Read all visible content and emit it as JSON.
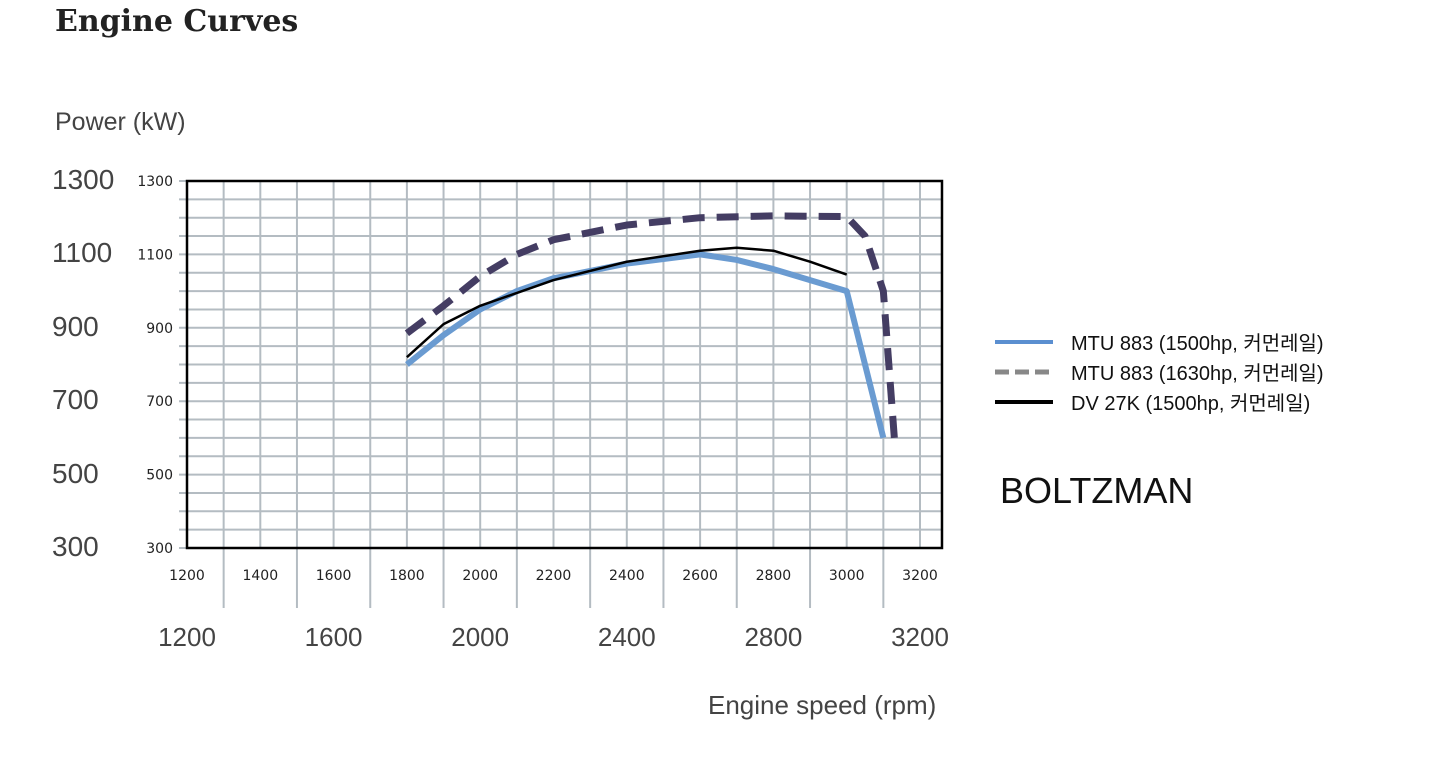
{
  "title": "Engine Curves",
  "brand": "BOLTZMAN",
  "big_y_ticks": [
    "1300",
    "1100",
    "900",
    "700",
    "500",
    "300"
  ],
  "big_x_ticks": [
    "1200",
    "1600",
    "2000",
    "2400",
    "2800",
    "3200"
  ],
  "chart_data": {
    "type": "line",
    "title": "Engine Curves",
    "xlabel": "Engine speed (rpm)",
    "ylabel": "Power (kW)",
    "xlim": [
      1200,
      3260
    ],
    "ylim": [
      300,
      1300
    ],
    "xticks": [
      1200,
      1400,
      1600,
      1800,
      2000,
      2200,
      2400,
      2600,
      2800,
      3000,
      3200
    ],
    "yticks": [
      300,
      500,
      700,
      900,
      1100,
      1300
    ],
    "grid": true,
    "legend_position": "right",
    "series": [
      {
        "name": "MTU 883 (1500hp, 커먼레일)",
        "color": "#6a9bd1",
        "style": "solid-thick",
        "x": [
          1800,
          1900,
          2000,
          2100,
          2200,
          2400,
          2600,
          2700,
          2800,
          2900,
          3000,
          3100
        ],
        "y": [
          800,
          880,
          950,
          1000,
          1035,
          1075,
          1100,
          1085,
          1060,
          1030,
          1000,
          600
        ]
      },
      {
        "name": "MTU 883 (1630hp, 커먼레일)",
        "color": "#443d63",
        "legend_color": "#888888",
        "style": "dashed",
        "x": [
          1800,
          1900,
          2000,
          2100,
          2200,
          2400,
          2600,
          2800,
          3000,
          3050,
          3100,
          3130
        ],
        "y": [
          885,
          960,
          1040,
          1100,
          1140,
          1180,
          1200,
          1205,
          1203,
          1150,
          1000,
          600
        ]
      },
      {
        "name": "DV 27K (1500hp, 커먼레일)",
        "color": "#000000",
        "style": "solid-thin",
        "x": [
          1800,
          1900,
          2000,
          2200,
          2400,
          2600,
          2700,
          2800,
          2900,
          3000
        ],
        "y": [
          820,
          910,
          960,
          1030,
          1080,
          1110,
          1118,
          1110,
          1080,
          1045
        ]
      }
    ]
  }
}
